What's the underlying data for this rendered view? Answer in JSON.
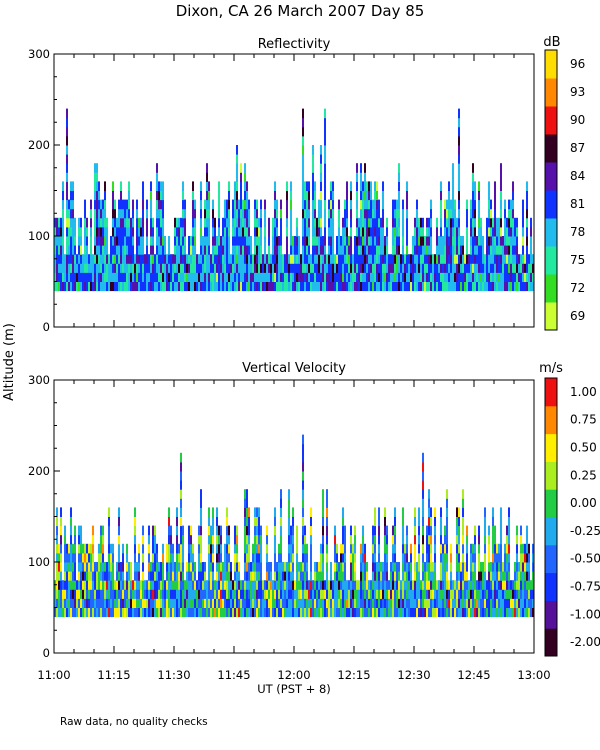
{
  "title": "Dixon, CA  26 March 2007   Day  85",
  "footer": "Raw data, no quality checks",
  "chart_data": [
    {
      "type": "heatmap",
      "title": "Reflectivity",
      "ylabel": "Altitude (m)",
      "xlabel": "",
      "ylim": [
        0,
        300
      ],
      "yticks": [
        "0",
        "100",
        "200",
        "300"
      ],
      "colorbar": {
        "unit": "dB",
        "labels": [
          "69",
          "72",
          "75",
          "78",
          "81",
          "84",
          "87",
          "90",
          "93",
          "96"
        ],
        "colors": [
          "#ccff33",
          "#33dd22",
          "#22e8a0",
          "#22bbee",
          "#1133ff",
          "#5511aa",
          "#330022",
          "#ee1111",
          "#ff8800",
          "#ffdd00"
        ]
      },
      "data_range": {
        "min_altitude": 40,
        "typical_top": 160,
        "max_top": 240
      },
      "typical_value": "78",
      "palette_weights": [
        0.01,
        0.02,
        0.18,
        0.34,
        0.28,
        0.12,
        0.05,
        0,
        0,
        0
      ]
    },
    {
      "type": "heatmap",
      "title": "Vertical Velocity",
      "ylabel": "",
      "xlabel": "UT  (PST + 8)",
      "ylim": [
        0,
        300
      ],
      "yticks": [
        "0",
        "100",
        "200",
        "300"
      ],
      "xticks": [
        "11:00",
        "11:15",
        "11:30",
        "11:45",
        "12:00",
        "12:15",
        "12:30",
        "12:45",
        "13:00"
      ],
      "colorbar": {
        "unit": "m/s",
        "labels": [
          "-2.00",
          "-1.00",
          "-0.75",
          "-0.50",
          "-0.25",
          "0.00",
          "0.25",
          "0.50",
          "0.75",
          "1.00"
        ],
        "colors": [
          "#330022",
          "#551199",
          "#1133ff",
          "#2266ff",
          "#22aaee",
          "#22cc44",
          "#aaee22",
          "#ffee00",
          "#ff8800",
          "#ee1111"
        ]
      },
      "data_range": {
        "min_altitude": 40,
        "typical_top": 160,
        "max_top": 240
      },
      "typical_value": "0.00",
      "palette_weights": [
        0.02,
        0.04,
        0.14,
        0.2,
        0.22,
        0.16,
        0.12,
        0.07,
        0.02,
        0.01
      ]
    }
  ]
}
